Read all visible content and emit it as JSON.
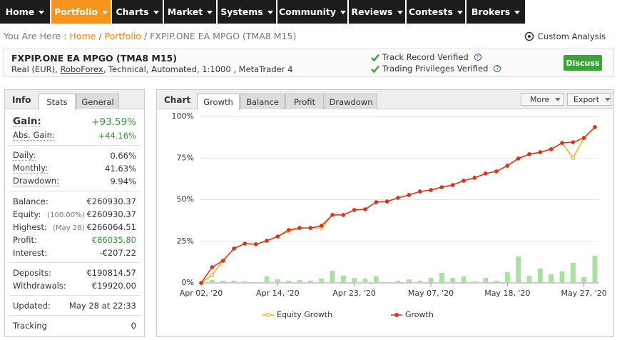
{
  "nav": {
    "items": [
      "Home",
      "Portfolio",
      "Charts",
      "Market",
      "Systems",
      "Community",
      "Reviews",
      "Contests",
      "Brokers"
    ],
    "active": 1
  },
  "breadcrumb": {
    "prefix": "You Are Here :",
    "separator": "/",
    "links": [
      "Home",
      "Portfolio"
    ],
    "current": "FXPIP.ONE EA MPGO (TMA8 M15)",
    "action": "Custom Analysis"
  },
  "system": {
    "title": "FXPIP.ONE EA MPGO (TMA8 M15)",
    "subtitle": [
      "Real (EUR), ",
      "RoboForex",
      ", Technical, Automated, 1:1000 , MetaTrader 4"
    ],
    "verifications": [
      "Track Record Verified",
      "Trading Privileges Verified"
    ],
    "button": "Discuss"
  },
  "stats": {
    "tabs": [
      "Info",
      "Stats",
      "General"
    ],
    "gain": {
      "label": "Gain:",
      "value": "+93.59%"
    },
    "abs_gain": {
      "label": "Abs. Gain:",
      "value": "+44.16%"
    },
    "groups": [
      [
        {
          "label": "Daily:",
          "value": "0.66%"
        },
        {
          "label": "Monthly:",
          "value": "41.63%"
        },
        {
          "label": "Drawdown:",
          "value": "9.94%"
        }
      ],
      [
        {
          "label": "Balance:",
          "value": "€260930.37"
        },
        {
          "label": "Equity:",
          "note": "(100.00%)",
          "value": "€260930.37"
        },
        {
          "label": "Highest:",
          "note": "(May 28)",
          "value": "€266064.51"
        },
        {
          "label": "Profit:",
          "value": "€86035.80"
        },
        {
          "label": "Interest:",
          "value": "-€207.22"
        }
      ],
      [
        {
          "label": "Deposits:",
          "value": "€190814.57"
        },
        {
          "label": "Withdrawals:",
          "value": "€19920.00"
        }
      ],
      [
        {
          "label": "Updated:",
          "value": "May 28 at 22:33"
        }
      ],
      [
        {
          "label": "Tracking",
          "value": "0"
        }
      ]
    ]
  },
  "chart_panel": {
    "tabs": [
      "Chart",
      "Growth",
      "Balance",
      "Profit",
      "Drawdown"
    ],
    "buttons": [
      "More",
      "Export"
    ]
  },
  "chart_data": {
    "type": "line",
    "categories": [
      "Apr 02, '20",
      null,
      null,
      null,
      null,
      null,
      null,
      "Apr 14, '20",
      null,
      null,
      null,
      null,
      null,
      null,
      "Apr 23, '20",
      null,
      null,
      null,
      null,
      null,
      null,
      "May 07, '20",
      null,
      null,
      null,
      null,
      null,
      null,
      "May 18, '20",
      null,
      null,
      null,
      null,
      null,
      null,
      "May 27, '20",
      null
    ],
    "series": [
      {
        "name": "Equity Growth",
        "color": "#f0b400",
        "values": [
          0,
          4.7,
          13.3,
          20.6,
          23.6,
          23.2,
          25.3,
          27.9,
          31.0,
          33.0,
          33.0,
          33.0,
          40.8,
          40.8,
          43.8,
          44.2,
          48.5,
          48.9,
          51.1,
          52.8,
          54.9,
          55.8,
          57.5,
          58.8,
          61.4,
          63.1,
          65.7,
          67.0,
          70.4,
          74.7,
          77.3,
          78.5,
          80.3,
          84.1,
          75.1,
          87.1,
          93.59
        ]
      },
      {
        "name": "Growth",
        "color": "#e0301e",
        "values": [
          0,
          9.4,
          13.3,
          20.6,
          23.6,
          23.2,
          25.3,
          27.9,
          31.8,
          33.0,
          33.0,
          34.3,
          40.8,
          40.8,
          43.8,
          44.2,
          48.5,
          48.9,
          51.1,
          52.8,
          54.9,
          55.8,
          57.5,
          58.8,
          61.4,
          63.1,
          65.7,
          67.0,
          70.4,
          74.7,
          77.3,
          78.5,
          80.3,
          84.1,
          84.5,
          87.1,
          93.59
        ]
      }
    ],
    "bars": {
      "color": "#a9e2a0",
      "values": [
        0,
        1.7,
        1.3,
        1.3,
        0.9,
        0,
        3.9,
        2.1,
        1.3,
        1.7,
        1.3,
        2.6,
        7.3,
        4.3,
        3.0,
        2.6,
        3.9,
        0,
        1.3,
        2.1,
        1.3,
        3.0,
        6.0,
        3.0,
        3.9,
        0.9,
        3.0,
        1.3,
        6.4,
        15.9,
        4.3,
        8.6,
        5.2,
        6.9,
        12.0,
        3.4,
        16.3
      ]
    },
    "ylim": [
      0,
      100
    ],
    "yticks": [
      {
        "value": 0,
        "label": "0%"
      },
      {
        "value": 25,
        "label": "25%"
      },
      {
        "value": 50,
        "label": "50%"
      },
      {
        "value": 75,
        "label": "75%"
      },
      {
        "value": 100,
        "label": "100%"
      }
    ],
    "grid": true
  }
}
